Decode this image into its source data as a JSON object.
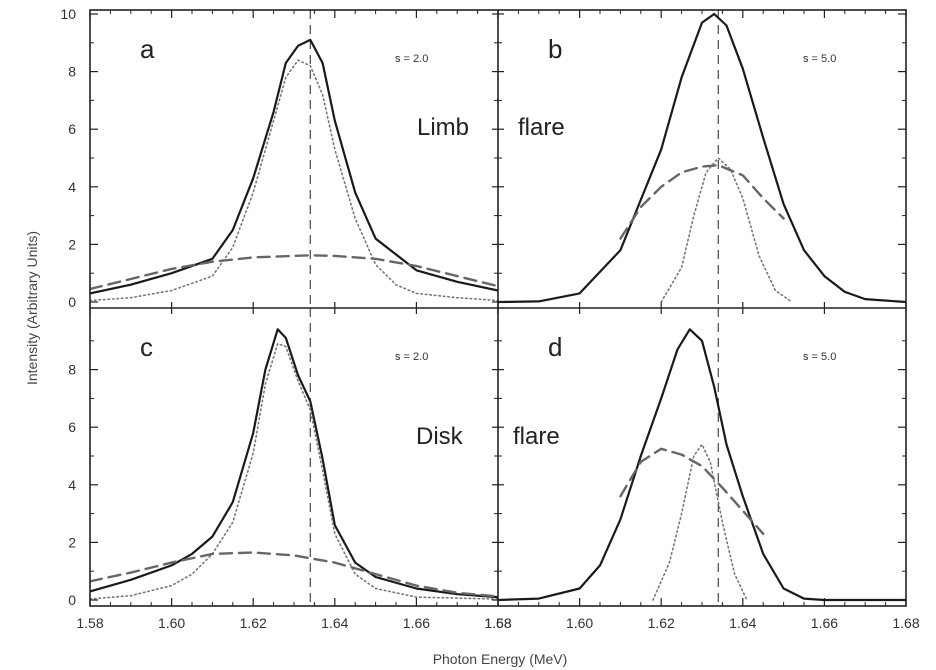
{
  "chart_data": {
    "type": "line",
    "xlabel": "Photon Energy (MeV)",
    "ylabel": "Intensity (Arbitrary Units)",
    "xlim": [
      1.58,
      1.68
    ],
    "ylim": [
      0,
      10
    ],
    "x_ticks": [
      "1.58",
      "1.60",
      "1.62",
      "1.64",
      "1.66",
      "1.68"
    ],
    "y_ticks_top": [
      "0",
      "2",
      "4",
      "6",
      "8",
      "10"
    ],
    "y_ticks_bottom": [
      "0",
      "2",
      "4",
      "6",
      "8"
    ],
    "reference_line_x": 1.634,
    "row_labels": {
      "top": [
        "Limb",
        "flare"
      ],
      "bottom": [
        "Disk",
        "flare"
      ]
    },
    "panels": [
      {
        "letter": "a",
        "s_label": "s = 2.0",
        "row": "top",
        "col": "left",
        "series": [
          {
            "style": "solid",
            "x": [
              1.58,
              1.59,
              1.6,
              1.61,
              1.615,
              1.62,
              1.625,
              1.628,
              1.631,
              1.634,
              1.637,
              1.64,
              1.645,
              1.65,
              1.66,
              1.67,
              1.68
            ],
            "y": [
              0.3,
              0.6,
              1.0,
              1.5,
              2.5,
              4.3,
              6.6,
              8.3,
              8.9,
              9.1,
              8.3,
              6.3,
              3.8,
              2.2,
              1.1,
              0.7,
              0.4
            ]
          },
          {
            "style": "dotted",
            "x": [
              1.58,
              1.59,
              1.6,
              1.61,
              1.615,
              1.62,
              1.625,
              1.628,
              1.631,
              1.634,
              1.637,
              1.64,
              1.645,
              1.65,
              1.655,
              1.66,
              1.67,
              1.68
            ],
            "y": [
              0.05,
              0.15,
              0.4,
              0.9,
              1.9,
              3.8,
              6.3,
              7.8,
              8.4,
              8.2,
              7.2,
              5.3,
              2.9,
              1.3,
              0.6,
              0.3,
              0.15,
              0.05
            ]
          },
          {
            "style": "dashed",
            "x": [
              1.58,
              1.59,
              1.6,
              1.61,
              1.62,
              1.63,
              1.634,
              1.64,
              1.65,
              1.66,
              1.67,
              1.68
            ],
            "y": [
              0.45,
              0.8,
              1.15,
              1.4,
              1.55,
              1.6,
              1.62,
              1.6,
              1.5,
              1.25,
              0.9,
              0.55
            ]
          }
        ]
      },
      {
        "letter": "b",
        "s_label": "s = 5.0",
        "row": "top",
        "col": "right",
        "series": [
          {
            "style": "solid",
            "x": [
              1.58,
              1.59,
              1.6,
              1.61,
              1.62,
              1.625,
              1.63,
              1.633,
              1.636,
              1.64,
              1.645,
              1.65,
              1.655,
              1.66,
              1.665,
              1.67,
              1.68
            ],
            "y": [
              0.0,
              0.02,
              0.3,
              1.8,
              5.3,
              7.8,
              9.7,
              10.0,
              9.6,
              8.1,
              5.7,
              3.4,
              1.8,
              0.9,
              0.35,
              0.1,
              0.0
            ]
          },
          {
            "style": "dotted",
            "x": [
              1.62,
              1.625,
              1.628,
              1.631,
              1.634,
              1.637,
              1.64,
              1.644,
              1.648,
              1.652
            ],
            "y": [
              0.0,
              1.2,
              3.0,
              4.5,
              5.0,
              4.6,
              3.6,
              1.6,
              0.4,
              0.0
            ]
          },
          {
            "style": "dashed",
            "x": [
              1.61,
              1.615,
              1.62,
              1.625,
              1.63,
              1.634,
              1.64,
              1.645,
              1.65
            ],
            "y": [
              2.2,
              3.3,
              4.0,
              4.5,
              4.7,
              4.75,
              4.4,
              3.6,
              2.9
            ]
          }
        ]
      },
      {
        "letter": "c",
        "s_label": "s = 2.0",
        "row": "bottom",
        "col": "left",
        "series": [
          {
            "style": "solid",
            "x": [
              1.58,
              1.59,
              1.6,
              1.605,
              1.61,
              1.615,
              1.62,
              1.623,
              1.626,
              1.628,
              1.631,
              1.634,
              1.637,
              1.64,
              1.645,
              1.65,
              1.66,
              1.67,
              1.68
            ],
            "y": [
              0.3,
              0.7,
              1.2,
              1.6,
              2.2,
              3.4,
              5.8,
              8.0,
              9.4,
              9.1,
              7.8,
              6.9,
              4.9,
              2.6,
              1.3,
              0.8,
              0.4,
              0.2,
              0.1
            ]
          },
          {
            "style": "dotted",
            "x": [
              1.58,
              1.59,
              1.6,
              1.605,
              1.61,
              1.615,
              1.62,
              1.623,
              1.626,
              1.628,
              1.631,
              1.634,
              1.637,
              1.64,
              1.645,
              1.65,
              1.66,
              1.68
            ],
            "y": [
              0.03,
              0.15,
              0.5,
              0.9,
              1.6,
              2.7,
              5.1,
              7.5,
              8.9,
              8.8,
              7.6,
              6.6,
              4.5,
              2.3,
              0.9,
              0.4,
              0.1,
              0.03
            ]
          },
          {
            "style": "dashed",
            "x": [
              1.58,
              1.59,
              1.6,
              1.61,
              1.62,
              1.63,
              1.64,
              1.65,
              1.66,
              1.67,
              1.68
            ],
            "y": [
              0.65,
              0.95,
              1.3,
              1.6,
              1.65,
              1.55,
              1.3,
              0.9,
              0.5,
              0.25,
              0.12
            ]
          }
        ]
      },
      {
        "letter": "d",
        "s_label": "s = 5.0",
        "row": "bottom",
        "col": "right",
        "series": [
          {
            "style": "solid",
            "x": [
              1.58,
              1.59,
              1.6,
              1.605,
              1.61,
              1.615,
              1.62,
              1.624,
              1.627,
              1.63,
              1.633,
              1.636,
              1.64,
              1.645,
              1.65,
              1.655,
              1.66,
              1.68
            ],
            "y": [
              0.0,
              0.05,
              0.4,
              1.2,
              2.8,
              5.0,
              7.0,
              8.7,
              9.4,
              9.0,
              7.4,
              5.4,
              3.6,
              1.6,
              0.4,
              0.05,
              0.0,
              0.0
            ]
          },
          {
            "style": "dotted",
            "x": [
              1.618,
              1.622,
              1.625,
              1.628,
              1.63,
              1.632,
              1.635,
              1.638,
              1.641
            ],
            "y": [
              0.0,
              1.3,
              3.0,
              5.0,
              5.4,
              4.8,
              2.7,
              0.9,
              0.0
            ]
          },
          {
            "style": "dashed",
            "x": [
              1.61,
              1.615,
              1.62,
              1.625,
              1.63,
              1.635,
              1.64,
              1.645
            ],
            "y": [
              3.6,
              4.8,
              5.25,
              5.05,
              4.65,
              3.9,
              3.1,
              2.3
            ]
          }
        ]
      }
    ]
  }
}
